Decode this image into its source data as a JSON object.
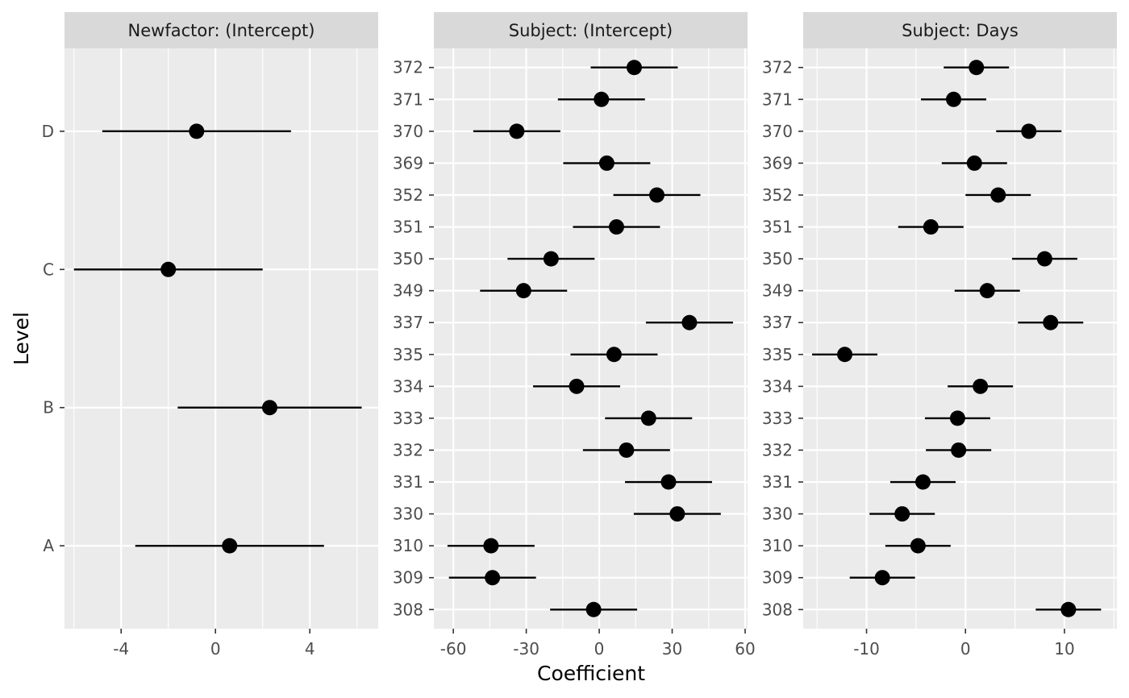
{
  "chart_data": {
    "type": "scatter",
    "subtype": "forest-plot-faceted",
    "xlabel": "Coefficient",
    "ylabel": "Level",
    "grid": true,
    "colors": {
      "panel_bg": "#EBEBEB",
      "strip_bg": "#D9D9D9",
      "grid_major": "#FFFFFF",
      "point": "#000000",
      "interval": "#000000"
    },
    "facets": [
      {
        "title": "Newfactor: (Intercept)",
        "xlim": [
          -6.4,
          6.9
        ],
        "xticks": [
          -4,
          0,
          4
        ],
        "xtick_labels": [
          "-4",
          "0",
          "4"
        ],
        "levels": [
          "A",
          "B",
          "C",
          "D"
        ],
        "estimates": [
          0.6,
          2.3,
          -2.0,
          -0.8
        ],
        "lower": [
          -3.4,
          -1.6,
          -6.0,
          -4.8
        ],
        "upper": [
          4.6,
          6.2,
          2.0,
          3.2
        ]
      },
      {
        "title": "Subject: (Intercept)",
        "xlim": [
          -68,
          61
        ],
        "xticks": [
          -60,
          -30,
          0,
          30,
          60
        ],
        "xtick_labels": [
          "-60",
          "-30",
          "0",
          "30",
          "60"
        ],
        "levels": [
          "308",
          "309",
          "310",
          "330",
          "331",
          "332",
          "333",
          "334",
          "335",
          "337",
          "349",
          "350",
          "351",
          "352",
          "369",
          "370",
          "371",
          "372"
        ],
        "estimates": [
          -2.3,
          -43.9,
          -44.5,
          32.1,
          28.5,
          11.2,
          20.3,
          -9.3,
          6.1,
          37.1,
          -31.1,
          -19.8,
          7.1,
          23.7,
          3.1,
          -33.9,
          0.9,
          14.4
        ],
        "lower": [
          -20.2,
          -61.8,
          -62.4,
          14.2,
          10.6,
          -6.7,
          2.4,
          -27.2,
          -11.8,
          19.2,
          -49.0,
          -37.7,
          -10.8,
          5.8,
          -14.8,
          -51.8,
          -17.0,
          -3.5
        ],
        "upper": [
          15.6,
          -26.0,
          -26.6,
          50.0,
          46.4,
          29.1,
          38.2,
          8.6,
          24.0,
          55.0,
          -13.2,
          -1.9,
          25.0,
          41.6,
          21.0,
          -16.0,
          18.8,
          32.3
        ]
      },
      {
        "title": "Subject: Days",
        "xlim": [
          -16.4,
          15.3
        ],
        "xticks": [
          -10,
          0,
          10
        ],
        "xtick_labels": [
          "-10",
          "0",
          "10"
        ],
        "levels": [
          "308",
          "309",
          "310",
          "330",
          "331",
          "332",
          "333",
          "334",
          "335",
          "337",
          "349",
          "350",
          "351",
          "352",
          "369",
          "370",
          "371",
          "372"
        ],
        "estimates": [
          10.4,
          -8.4,
          -4.8,
          -6.4,
          -4.3,
          -0.7,
          -0.8,
          1.5,
          -12.2,
          8.6,
          2.2,
          8.0,
          -3.5,
          3.3,
          0.9,
          6.4,
          -1.2,
          1.1
        ],
        "lower": [
          7.1,
          -11.7,
          -8.1,
          -9.7,
          -7.6,
          -4.0,
          -4.1,
          -1.8,
          -15.5,
          5.3,
          -1.1,
          4.7,
          -6.8,
          0.0,
          -2.4,
          3.1,
          -4.5,
          -2.2
        ],
        "upper": [
          13.7,
          -5.1,
          -1.5,
          -3.1,
          -1.0,
          2.6,
          2.5,
          4.8,
          -8.9,
          11.9,
          5.5,
          11.3,
          -0.2,
          6.6,
          4.2,
          9.7,
          2.1,
          4.4
        ]
      }
    ]
  }
}
